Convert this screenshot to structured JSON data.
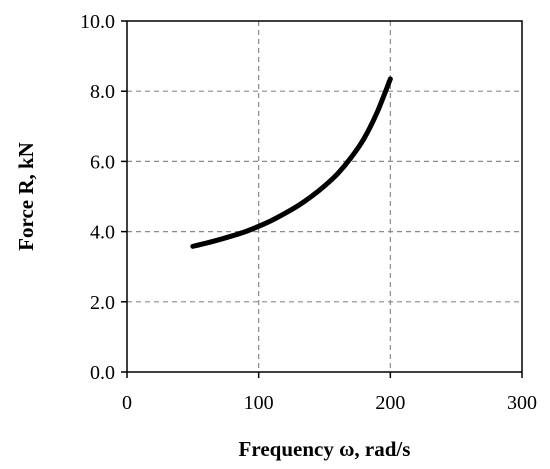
{
  "chart_data": {
    "type": "line",
    "title": "",
    "xlabel": "Frequency ω, rad/s",
    "ylabel": "Force R, kN",
    "xlim": [
      0,
      300
    ],
    "ylim": [
      0,
      10
    ],
    "x_ticks": [
      0,
      100,
      200,
      300
    ],
    "x_tick_labels": [
      "0",
      "100",
      "200",
      "300"
    ],
    "y_ticks": [
      0,
      2,
      4,
      6,
      8,
      10
    ],
    "y_tick_labels": [
      "0.0",
      "2.0",
      "4.0",
      "6.0",
      "8.0",
      "10.0"
    ],
    "grid": true,
    "legend": "none",
    "series": [
      {
        "color": "#000000",
        "x": [
          50,
          60,
          70,
          80,
          90,
          100,
          110,
          120,
          130,
          140,
          150,
          160,
          170,
          180,
          190,
          200
        ],
        "y": [
          3.58,
          3.67,
          3.77,
          3.88,
          4.0,
          4.15,
          4.32,
          4.52,
          4.74,
          5.0,
          5.3,
          5.65,
          6.1,
          6.65,
          7.4,
          8.35
        ]
      }
    ]
  }
}
